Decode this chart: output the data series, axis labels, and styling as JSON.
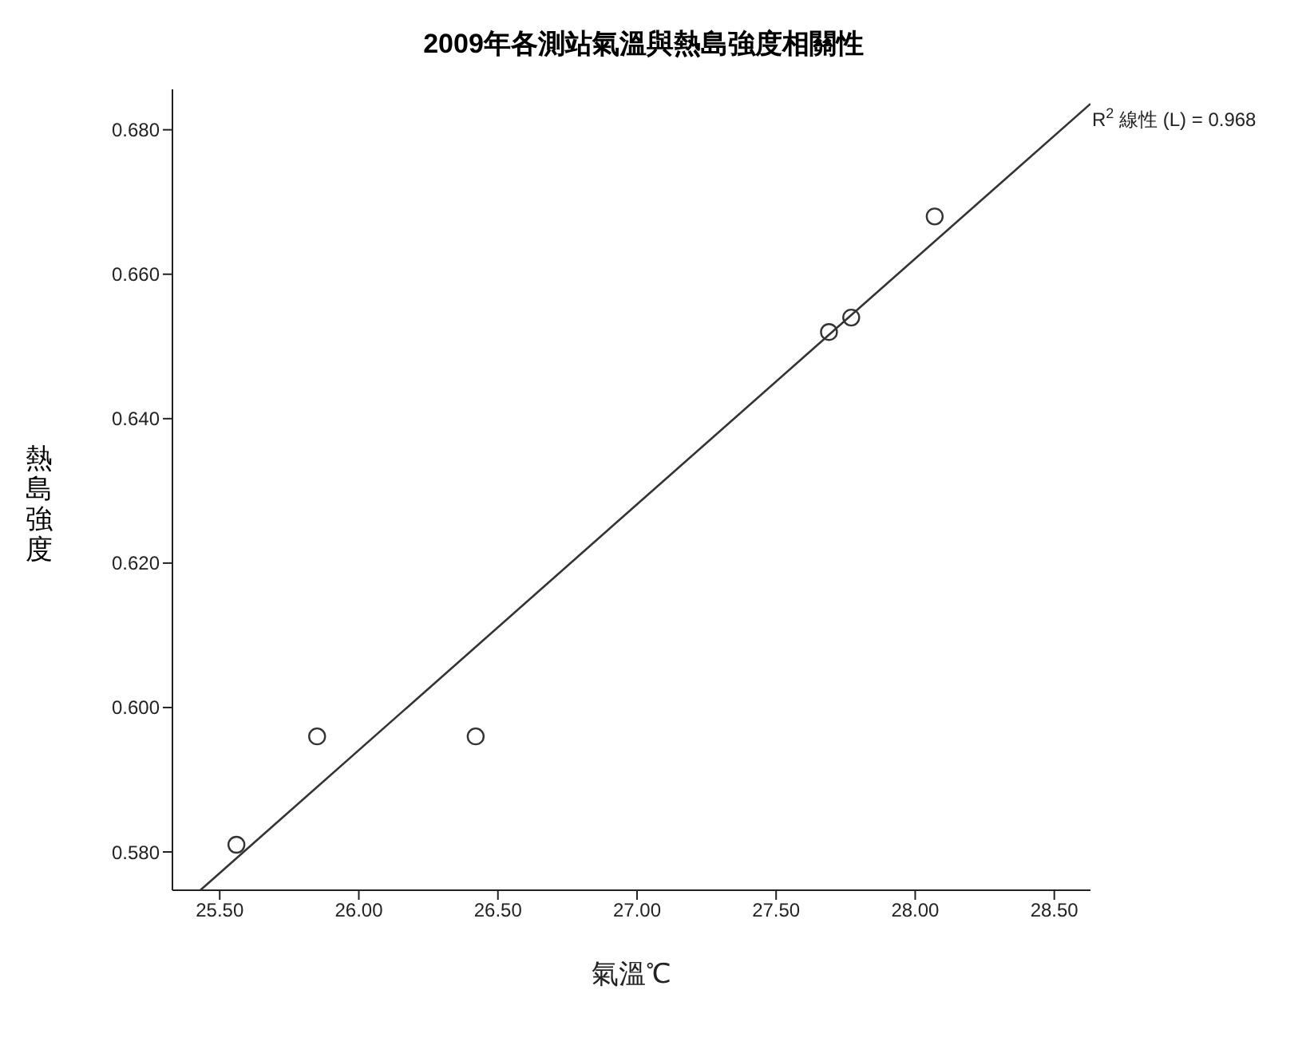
{
  "chart_data": {
    "type": "scatter",
    "title": "2009年各測站氣溫與熱島強度相關性",
    "xlabel": "氣溫℃",
    "ylabel": "熱島強度",
    "series": [
      {
        "color": "#333333",
        "marker": "circle",
        "x": [
          25.56,
          25.85,
          26.42,
          27.69,
          27.77,
          28.07
        ],
        "values": [
          0.581,
          0.596,
          0.596,
          0.652,
          0.654,
          0.668
        ]
      },
      {
        "type": "line",
        "color": "#333333",
        "marker": "none",
        "x": [
          25.43,
          28.63
        ],
        "values": [
          0.5747,
          0.6836
        ]
      }
    ],
    "annotations": [
      {
        "text": "R$^{2}$ 線性 (L) = 0.968",
        "x": 28.63,
        "y": 0.6836
      }
    ],
    "xlim": [
      25.33,
      28.63
    ],
    "xticks": [
      {
        "value": 25.5,
        "label": "25.50"
      },
      {
        "value": 26,
        "label": "26.00"
      },
      {
        "value": 26.5,
        "label": "26.50"
      },
      {
        "value": 27,
        "label": "27.00"
      },
      {
        "value": 27.5,
        "label": "27.50"
      },
      {
        "value": 28,
        "label": "28.00"
      },
      {
        "value": 28.5,
        "label": "28.50"
      }
    ],
    "ylim": [
      0.5747,
      0.6856
    ],
    "yticks": [
      {
        "value": 0.58,
        "label": "0.580"
      },
      {
        "value": 0.6,
        "label": "0.600"
      },
      {
        "value": 0.62,
        "label": "0.620"
      },
      {
        "value": 0.64,
        "label": "0.640"
      },
      {
        "value": 0.66,
        "label": "0.660"
      },
      {
        "value": 0.68,
        "label": "0.680"
      }
    ],
    "grid": false,
    "legend": false
  }
}
